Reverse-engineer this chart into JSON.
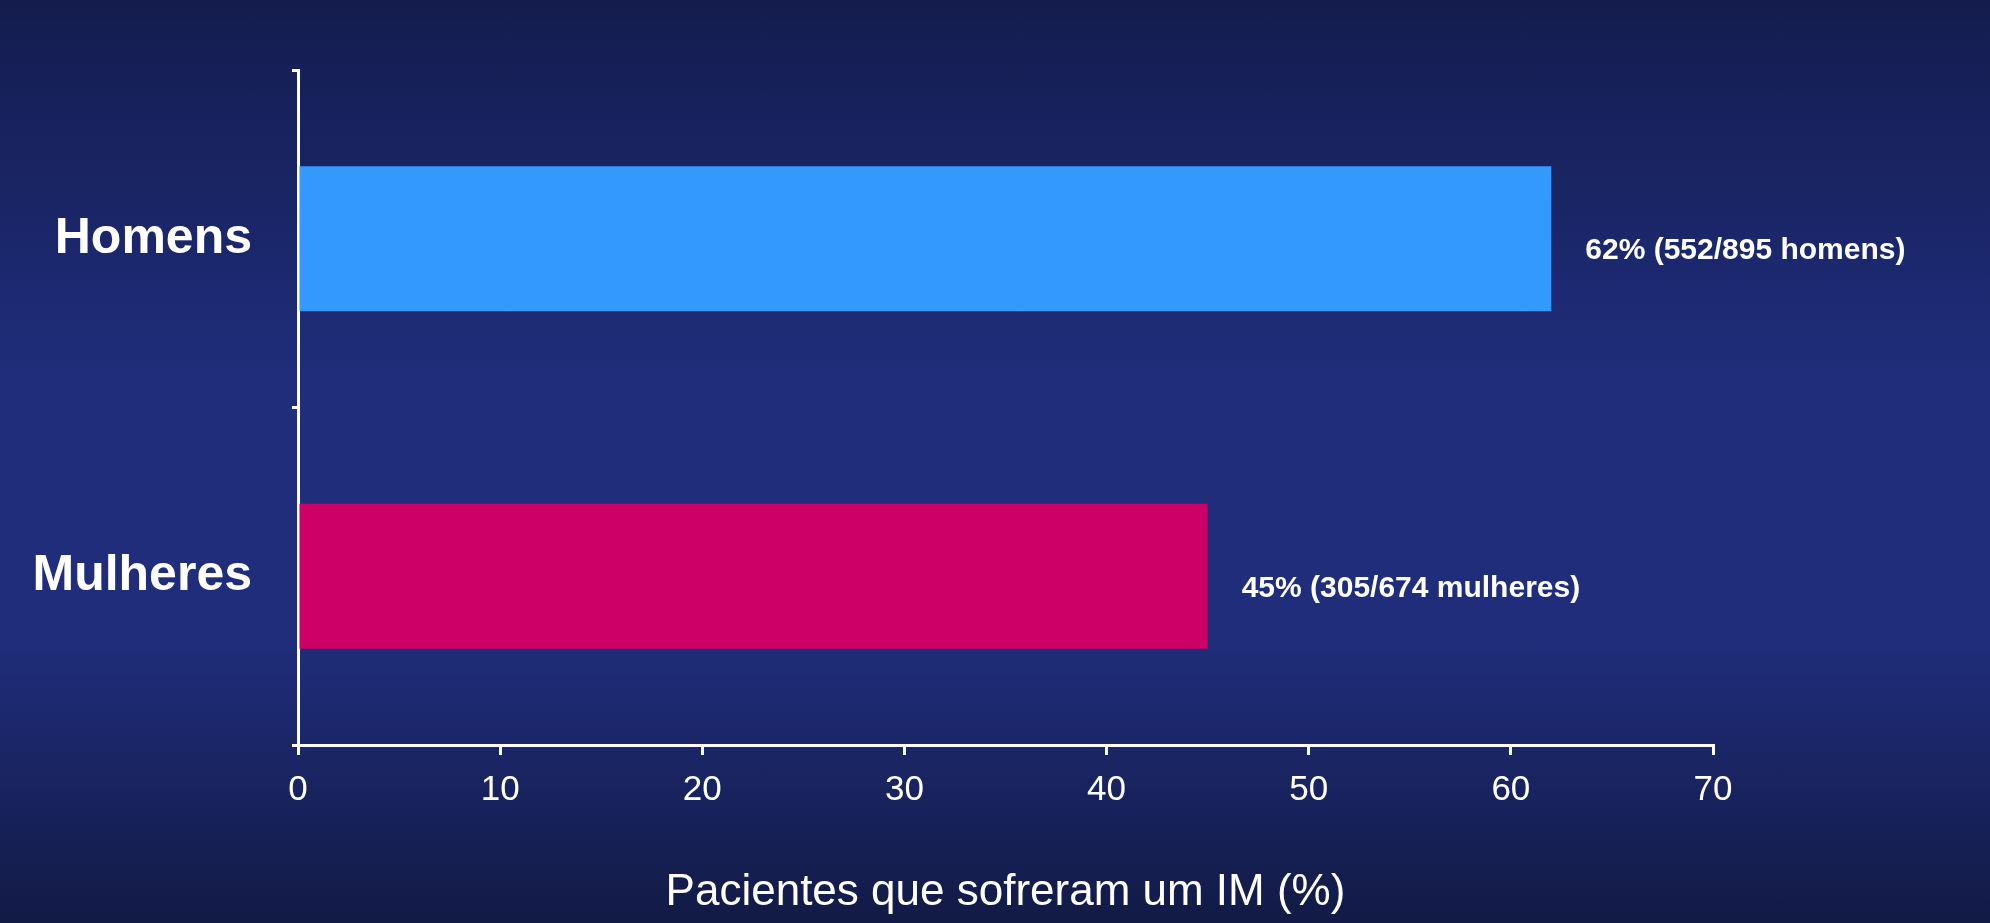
{
  "chart_data": {
    "type": "bar",
    "orientation": "horizontal",
    "categories": [
      "Homens",
      "Mulheres"
    ],
    "values": [
      62,
      45
    ],
    "colors": [
      "#3399ff",
      "#cc0066"
    ],
    "value_labels": [
      "62% (552/895 homens)",
      "45% (305/674 mulheres)"
    ],
    "xlabel": "Pacientes que sofreram um IM (%)",
    "xlim": [
      0,
      70
    ],
    "xticks": [
      0,
      10,
      20,
      30,
      40,
      50,
      60,
      70
    ]
  }
}
